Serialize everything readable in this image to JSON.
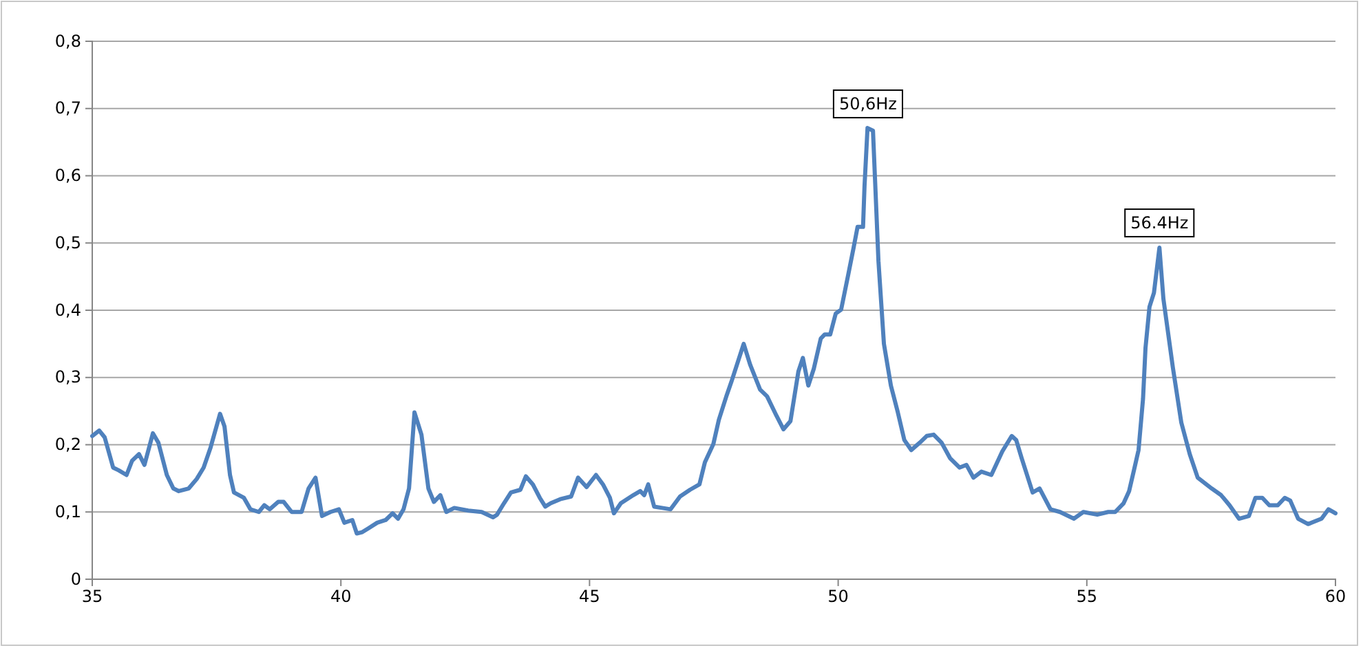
{
  "chart_data": {
    "type": "line",
    "xlim": [
      35,
      60
    ],
    "xticks": [
      35,
      40,
      45,
      50,
      55,
      60
    ],
    "ylim": [
      0,
      0.8
    ],
    "yticks": [
      {
        "value": 0,
        "label": "0"
      },
      {
        "value": 0.1,
        "label": "0,1"
      },
      {
        "value": 0.2,
        "label": "0,2"
      },
      {
        "value": 0.3,
        "label": "0,3"
      },
      {
        "value": 0.4,
        "label": "0,4"
      },
      {
        "value": 0.5,
        "label": "0,5"
      },
      {
        "value": 0.6,
        "label": "0,6"
      },
      {
        "value": 0.7,
        "label": "0,7"
      },
      {
        "value": 0.8,
        "label": "0,8"
      }
    ],
    "grid": "y",
    "marker": "none",
    "line_style": "solid",
    "annotations": [
      {
        "text": "50,6Hz",
        "x": 50.6,
        "y": 0.67
      },
      {
        "text": "56.4Hz",
        "x": 56.46,
        "y": 0.493
      }
    ],
    "series": [
      {
        "color": "#4f81bd",
        "x": [
          35.0,
          35.14,
          35.25,
          35.42,
          35.53,
          35.69,
          35.8,
          35.94,
          36.05,
          36.22,
          36.33,
          36.5,
          36.63,
          36.74,
          36.94,
          37.1,
          37.24,
          37.38,
          37.57,
          37.66,
          37.77,
          37.85,
          38.05,
          38.18,
          38.35,
          38.46,
          38.57,
          38.74,
          38.85,
          39.01,
          39.21,
          39.35,
          39.49,
          39.62,
          39.79,
          39.96,
          40.07,
          40.23,
          40.32,
          40.43,
          40.56,
          40.73,
          40.9,
          41.04,
          41.15,
          41.26,
          41.37,
          41.48,
          41.62,
          41.76,
          41.87,
          42.0,
          42.12,
          42.28,
          42.56,
          42.83,
          43.06,
          43.14,
          43.28,
          43.42,
          43.61,
          43.72,
          43.86,
          44.0,
          44.11,
          44.22,
          44.41,
          44.63,
          44.77,
          44.94,
          45.13,
          45.27,
          45.41,
          45.49,
          45.63,
          45.88,
          46.02,
          46.1,
          46.18,
          46.3,
          46.46,
          46.63,
          46.82,
          47.02,
          47.21,
          47.32,
          47.49,
          47.6,
          47.76,
          47.85,
          48.1,
          48.23,
          48.43,
          48.57,
          48.76,
          48.9,
          49.04,
          49.2,
          49.29,
          49.4,
          49.51,
          49.65,
          49.73,
          49.84,
          49.95,
          50.06,
          50.2,
          50.31,
          50.39,
          50.5,
          50.53,
          50.59,
          50.7,
          50.81,
          50.92,
          51.06,
          51.2,
          51.33,
          51.47,
          51.64,
          51.78,
          51.92,
          52.08,
          52.25,
          52.44,
          52.58,
          52.72,
          52.88,
          53.08,
          53.3,
          53.49,
          53.58,
          53.69,
          53.91,
          54.05,
          54.27,
          54.46,
          54.74,
          54.93,
          55.21,
          55.43,
          55.57,
          55.74,
          55.85,
          55.96,
          56.04,
          56.13,
          56.18,
          56.26,
          56.35,
          56.46,
          56.54,
          56.73,
          56.9,
          57.07,
          57.23,
          57.51,
          57.7,
          57.87,
          58.06,
          58.26,
          58.39,
          58.53,
          58.67,
          58.84,
          58.98,
          59.09,
          59.25,
          59.45,
          59.72,
          59.86,
          60.0
        ],
        "values": [
          0.213,
          0.221,
          0.211,
          0.166,
          0.162,
          0.155,
          0.176,
          0.186,
          0.17,
          0.217,
          0.203,
          0.155,
          0.135,
          0.131,
          0.135,
          0.149,
          0.166,
          0.196,
          0.246,
          0.227,
          0.155,
          0.129,
          0.121,
          0.104,
          0.1,
          0.11,
          0.104,
          0.115,
          0.115,
          0.1,
          0.1,
          0.135,
          0.151,
          0.094,
          0.1,
          0.104,
          0.084,
          0.088,
          0.068,
          0.07,
          0.076,
          0.084,
          0.088,
          0.098,
          0.09,
          0.104,
          0.135,
          0.248,
          0.215,
          0.135,
          0.115,
          0.125,
          0.1,
          0.106,
          0.102,
          0.1,
          0.092,
          0.096,
          0.113,
          0.129,
          0.133,
          0.153,
          0.141,
          0.121,
          0.108,
          0.113,
          0.119,
          0.123,
          0.151,
          0.137,
          0.155,
          0.141,
          0.121,
          0.098,
          0.113,
          0.125,
          0.131,
          0.125,
          0.141,
          0.108,
          0.106,
          0.104,
          0.123,
          0.133,
          0.141,
          0.174,
          0.201,
          0.237,
          0.274,
          0.293,
          0.35,
          0.319,
          0.282,
          0.272,
          0.243,
          0.223,
          0.235,
          0.309,
          0.329,
          0.288,
          0.313,
          0.358,
          0.364,
          0.364,
          0.395,
          0.401,
          0.452,
          0.493,
          0.524,
          0.524,
          0.585,
          0.671,
          0.667,
          0.473,
          0.35,
          0.288,
          0.248,
          0.207,
          0.192,
          0.203,
          0.213,
          0.215,
          0.203,
          0.18,
          0.166,
          0.17,
          0.151,
          0.16,
          0.155,
          0.19,
          0.213,
          0.207,
          0.18,
          0.129,
          0.135,
          0.104,
          0.1,
          0.09,
          0.1,
          0.096,
          0.1,
          0.1,
          0.113,
          0.131,
          0.166,
          0.192,
          0.268,
          0.344,
          0.405,
          0.426,
          0.493,
          0.417,
          0.315,
          0.233,
          0.186,
          0.151,
          0.135,
          0.125,
          0.11,
          0.09,
          0.094,
          0.121,
          0.121,
          0.11,
          0.11,
          0.121,
          0.117,
          0.09,
          0.082,
          0.09,
          0.104,
          0.098
        ]
      }
    ]
  }
}
